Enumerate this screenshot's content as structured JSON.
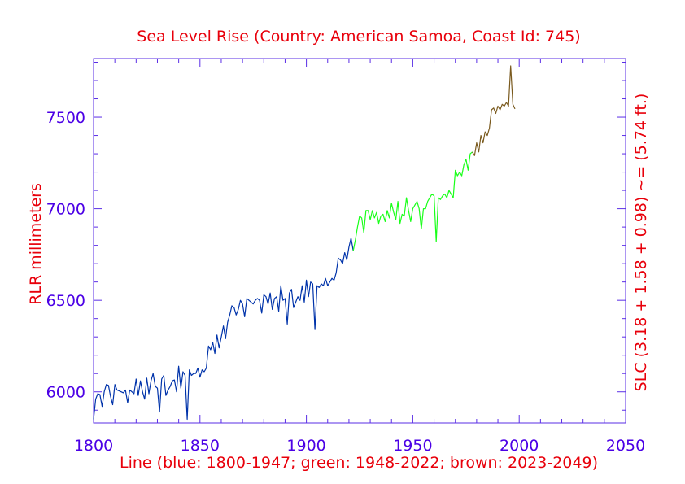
{
  "chart_data": {
    "type": "line",
    "title": "Sea Level Rise (Country: American Samoa, Coast Id: 745)",
    "xlabel": "Line (blue: 1800-1947; green: 1948-2022; brown: 2023-2049)",
    "ylabel": "RLR millimeters",
    "ylabel_right": "SLC (3.18 + 1.58 + 0.98) ~= (5.74 ft.)",
    "xlim": [
      1800,
      2050
    ],
    "ylim": [
      5830,
      7820
    ],
    "x_ticks": [
      1800,
      1850,
      1900,
      1950,
      2000,
      2050
    ],
    "y_ticks": [
      6000,
      6500,
      7000,
      7500
    ],
    "grid": false,
    "series": [
      {
        "period": "1800-1947",
        "color": "#0033aa",
        "points": [
          [
            1800,
            5850
          ],
          [
            1801,
            5960
          ],
          [
            1802,
            5990
          ],
          [
            1803,
            5985
          ],
          [
            1804,
            5920
          ],
          [
            1805,
            6000
          ],
          [
            1806,
            6040
          ],
          [
            1807,
            6035
          ],
          [
            1808,
            5975
          ],
          [
            1809,
            5930
          ],
          [
            1810,
            6040
          ],
          [
            1811,
            6010
          ],
          [
            1812,
            6005
          ],
          [
            1813,
            6000
          ],
          [
            1814,
            5995
          ],
          [
            1815,
            6010
          ],
          [
            1816,
            5940
          ],
          [
            1817,
            6010
          ],
          [
            1818,
            6000
          ],
          [
            1819,
            5990
          ],
          [
            1820,
            6070
          ],
          [
            1821,
            5980
          ],
          [
            1822,
            6060
          ],
          [
            1823,
            6000
          ],
          [
            1824,
            5960
          ],
          [
            1825,
            6075
          ],
          [
            1826,
            5990
          ],
          [
            1827,
            6060
          ],
          [
            1828,
            6100
          ],
          [
            1829,
            6030
          ],
          [
            1830,
            6020
          ],
          [
            1831,
            5890
          ],
          [
            1832,
            6070
          ],
          [
            1833,
            6090
          ],
          [
            1834,
            5980
          ],
          [
            1835,
            6010
          ],
          [
            1836,
            6030
          ],
          [
            1837,
            6060
          ],
          [
            1838,
            6065
          ],
          [
            1839,
            6000
          ],
          [
            1840,
            6140
          ],
          [
            1841,
            6020
          ],
          [
            1842,
            6110
          ],
          [
            1843,
            6090
          ],
          [
            1844,
            5850
          ],
          [
            1845,
            6120
          ],
          [
            1846,
            6090
          ],
          [
            1847,
            6100
          ],
          [
            1848,
            6100
          ],
          [
            1849,
            6130
          ],
          [
            1850,
            6080
          ],
          [
            1851,
            6120
          ],
          [
            1852,
            6110
          ],
          [
            1853,
            6130
          ],
          [
            1854,
            6250
          ],
          [
            1855,
            6230
          ],
          [
            1856,
            6270
          ],
          [
            1857,
            6210
          ],
          [
            1858,
            6310
          ],
          [
            1859,
            6240
          ],
          [
            1860,
            6300
          ],
          [
            1861,
            6360
          ],
          [
            1862,
            6290
          ],
          [
            1863,
            6380
          ],
          [
            1864,
            6420
          ],
          [
            1865,
            6470
          ],
          [
            1866,
            6460
          ],
          [
            1867,
            6420
          ],
          [
            1868,
            6450
          ],
          [
            1869,
            6500
          ],
          [
            1870,
            6480
          ],
          [
            1871,
            6410
          ],
          [
            1872,
            6510
          ],
          [
            1873,
            6500
          ],
          [
            1874,
            6490
          ],
          [
            1875,
            6480
          ],
          [
            1876,
            6500
          ],
          [
            1877,
            6510
          ],
          [
            1878,
            6500
          ],
          [
            1879,
            6430
          ],
          [
            1880,
            6530
          ],
          [
            1881,
            6520
          ],
          [
            1882,
            6480
          ],
          [
            1883,
            6540
          ],
          [
            1884,
            6450
          ],
          [
            1885,
            6510
          ],
          [
            1886,
            6520
          ],
          [
            1887,
            6440
          ],
          [
            1888,
            6580
          ],
          [
            1889,
            6500
          ],
          [
            1890,
            6510
          ],
          [
            1891,
            6370
          ],
          [
            1892,
            6540
          ],
          [
            1893,
            6560
          ],
          [
            1894,
            6460
          ],
          [
            1895,
            6490
          ],
          [
            1896,
            6520
          ],
          [
            1897,
            6500
          ],
          [
            1898,
            6580
          ],
          [
            1899,
            6490
          ],
          [
            1900,
            6610
          ],
          [
            1901,
            6520
          ],
          [
            1902,
            6600
          ],
          [
            1903,
            6590
          ],
          [
            1904,
            6340
          ],
          [
            1905,
            6580
          ],
          [
            1906,
            6570
          ],
          [
            1907,
            6590
          ],
          [
            1908,
            6580
          ],
          [
            1909,
            6620
          ],
          [
            1910,
            6580
          ],
          [
            1911,
            6600
          ],
          [
            1912,
            6620
          ],
          [
            1913,
            6610
          ],
          [
            1914,
            6650
          ],
          [
            1915,
            6730
          ],
          [
            1916,
            6720
          ],
          [
            1917,
            6700
          ],
          [
            1918,
            6760
          ],
          [
            1919,
            6720
          ],
          [
            1920,
            6790
          ],
          [
            1921,
            6840
          ],
          [
            1922,
            6770
          ]
        ]
      },
      {
        "period": "1948-2022",
        "color": "#19ff19",
        "points": [
          [
            1922,
            6770
          ],
          [
            1923,
            6830
          ],
          [
            1924,
            6900
          ],
          [
            1925,
            6960
          ],
          [
            1926,
            6950
          ],
          [
            1927,
            6870
          ],
          [
            1928,
            6990
          ],
          [
            1929,
            6990
          ],
          [
            1930,
            6940
          ],
          [
            1931,
            6990
          ],
          [
            1932,
            6950
          ],
          [
            1933,
            6980
          ],
          [
            1934,
            6920
          ],
          [
            1935,
            6960
          ],
          [
            1936,
            6970
          ],
          [
            1937,
            6930
          ],
          [
            1938,
            6990
          ],
          [
            1939,
            6950
          ],
          [
            1940,
            7030
          ],
          [
            1941,
            6980
          ],
          [
            1942,
            6940
          ],
          [
            1943,
            7040
          ],
          [
            1944,
            6920
          ],
          [
            1945,
            6970
          ],
          [
            1946,
            6960
          ],
          [
            1947,
            7060
          ],
          [
            1948,
            6990
          ],
          [
            1949,
            6930
          ],
          [
            1950,
            7000
          ],
          [
            1951,
            7020
          ],
          [
            1952,
            7040
          ],
          [
            1953,
            7000
          ],
          [
            1954,
            6890
          ],
          [
            1955,
            7000
          ],
          [
            1956,
            7000
          ],
          [
            1957,
            7040
          ],
          [
            1958,
            7060
          ],
          [
            1959,
            7080
          ],
          [
            1960,
            7070
          ],
          [
            1961,
            6820
          ],
          [
            1962,
            7060
          ],
          [
            1963,
            7050
          ],
          [
            1964,
            7070
          ],
          [
            1965,
            7080
          ],
          [
            1966,
            7060
          ],
          [
            1967,
            7100
          ],
          [
            1968,
            7080
          ],
          [
            1969,
            7060
          ],
          [
            1970,
            7210
          ],
          [
            1971,
            7180
          ],
          [
            1972,
            7200
          ],
          [
            1973,
            7180
          ],
          [
            1974,
            7240
          ],
          [
            1975,
            7270
          ],
          [
            1976,
            7210
          ],
          [
            1977,
            7300
          ],
          [
            1978,
            7310
          ]
        ]
      },
      {
        "period": "2023-2049",
        "color": "#7a5a1e",
        "points": [
          [
            1978,
            7310
          ],
          [
            1979,
            7290
          ],
          [
            1980,
            7360
          ],
          [
            1981,
            7310
          ],
          [
            1982,
            7400
          ],
          [
            1983,
            7360
          ],
          [
            1984,
            7420
          ],
          [
            1985,
            7400
          ],
          [
            1986,
            7440
          ],
          [
            1987,
            7540
          ],
          [
            1988,
            7550
          ],
          [
            1989,
            7520
          ],
          [
            1990,
            7560
          ],
          [
            1991,
            7540
          ],
          [
            1992,
            7570
          ],
          [
            1993,
            7560
          ],
          [
            1994,
            7580
          ],
          [
            1995,
            7560
          ],
          [
            1996,
            7780
          ],
          [
            1997,
            7570
          ],
          [
            1998,
            7545
          ]
        ]
      }
    ]
  }
}
